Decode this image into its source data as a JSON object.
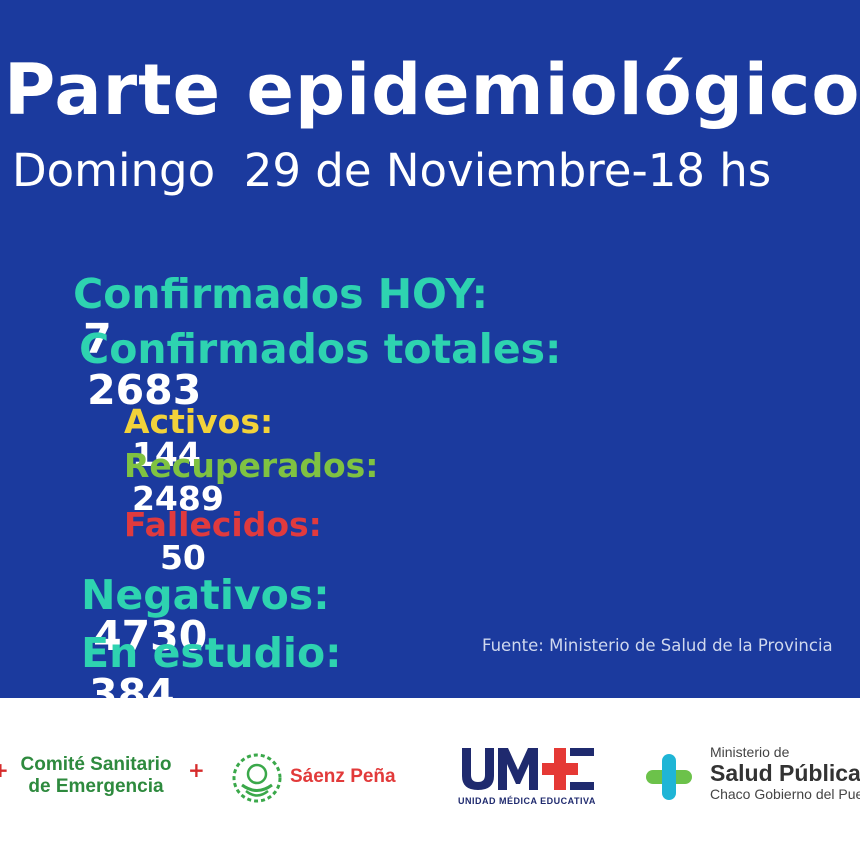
{
  "header": {
    "title": "Parte epidemiológico",
    "subtitle": "Domingo  29 de Noviembre-18 hs"
  },
  "stats": {
    "confirmados_hoy": {
      "label": "Confirmados HOY:",
      "value": "7"
    },
    "confirmados_totales": {
      "label": "Confirmados totales:",
      "value": "2683"
    },
    "activos": {
      "label": "Activos:",
      "value": "144"
    },
    "recuperados": {
      "label": "Recuperados:",
      "value": "2489"
    },
    "fallecidos": {
      "label": "Fallecidos:",
      "value": "50"
    },
    "negativos": {
      "label": "Negativos:",
      "value": "4730"
    },
    "en_estudio": {
      "label": "En estudio:",
      "value": "384"
    }
  },
  "source": "Fuente: Ministerio de Salud de la Provincia",
  "logos": {
    "comite": {
      "line1": "Comité Sanitario",
      "line2": "de Emergencia"
    },
    "saenz": {
      "text": "Sáenz Peña"
    },
    "ume": {
      "sub": "UNIDAD MÉDICA EDUCATIVA"
    },
    "ministerio": {
      "line1": "Ministerio de",
      "line2": "Salud Pública",
      "line3": "Chaco Gobierno del Pueblo"
    }
  },
  "colors": {
    "background": "#1b3a9e",
    "teal": "#2ed3b0",
    "yellow": "#f2d23a",
    "green": "#7fc242",
    "red": "#e03a3e",
    "white": "#ffffff"
  }
}
